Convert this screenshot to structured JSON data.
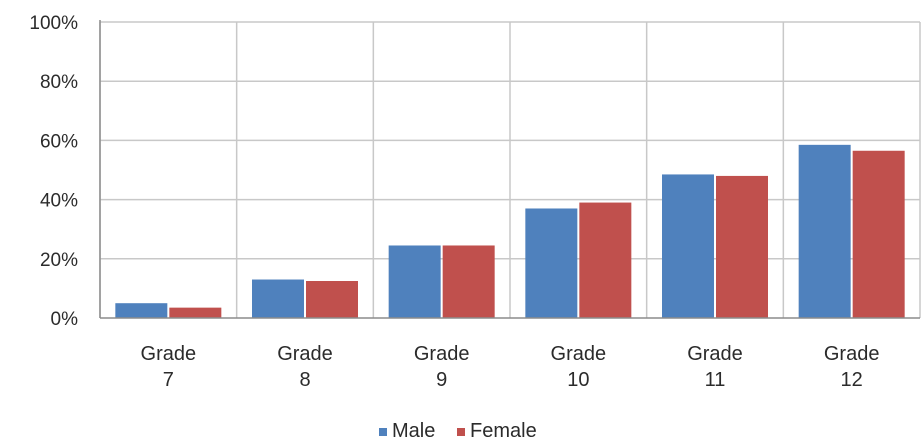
{
  "chart_data": {
    "type": "bar",
    "categories": [
      [
        "Grade",
        "7"
      ],
      [
        "Grade",
        "8"
      ],
      [
        "Grade",
        "9"
      ],
      [
        "Grade",
        "10"
      ],
      [
        "Grade",
        "11"
      ],
      [
        "Grade",
        "12"
      ]
    ],
    "series": [
      {
        "name": "Male",
        "color": "#4f81bd",
        "values": [
          5,
          13,
          24.5,
          37,
          48.5,
          58.5
        ]
      },
      {
        "name": "Female",
        "color": "#c0504d",
        "values": [
          3.5,
          12.5,
          24.5,
          39,
          48,
          56.5
        ]
      }
    ],
    "yticks": [
      "0%",
      "20%",
      "40%",
      "60%",
      "80%",
      "100%"
    ],
    "ylim": [
      0,
      100
    ],
    "grid": true,
    "legend_position": "bottom",
    "title": "",
    "xlabel": "",
    "ylabel": ""
  }
}
